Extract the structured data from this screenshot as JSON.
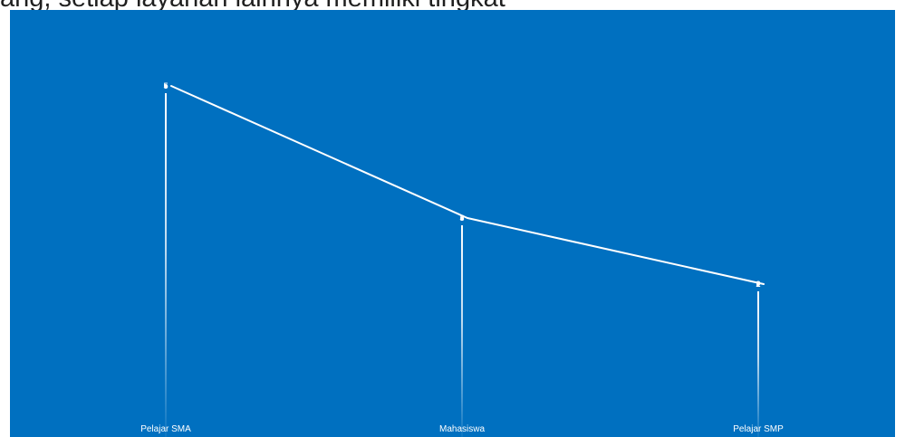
{
  "header": {
    "text": "ang, setiap layanan lainnya memiliki tingkat"
  },
  "colors": {
    "panel_background": "#0070c0",
    "line": "#ffffff",
    "text": "#ffffff"
  },
  "chart_data": {
    "type": "line",
    "categories": [
      "Pelajar SMA",
      "Mahasiswa",
      "Pelajar SMP"
    ],
    "series": [
      {
        "values": [
          5,
          3,
          2
        ]
      }
    ],
    "ylim": [
      0,
      6
    ],
    "grid": false,
    "legend": "none"
  }
}
